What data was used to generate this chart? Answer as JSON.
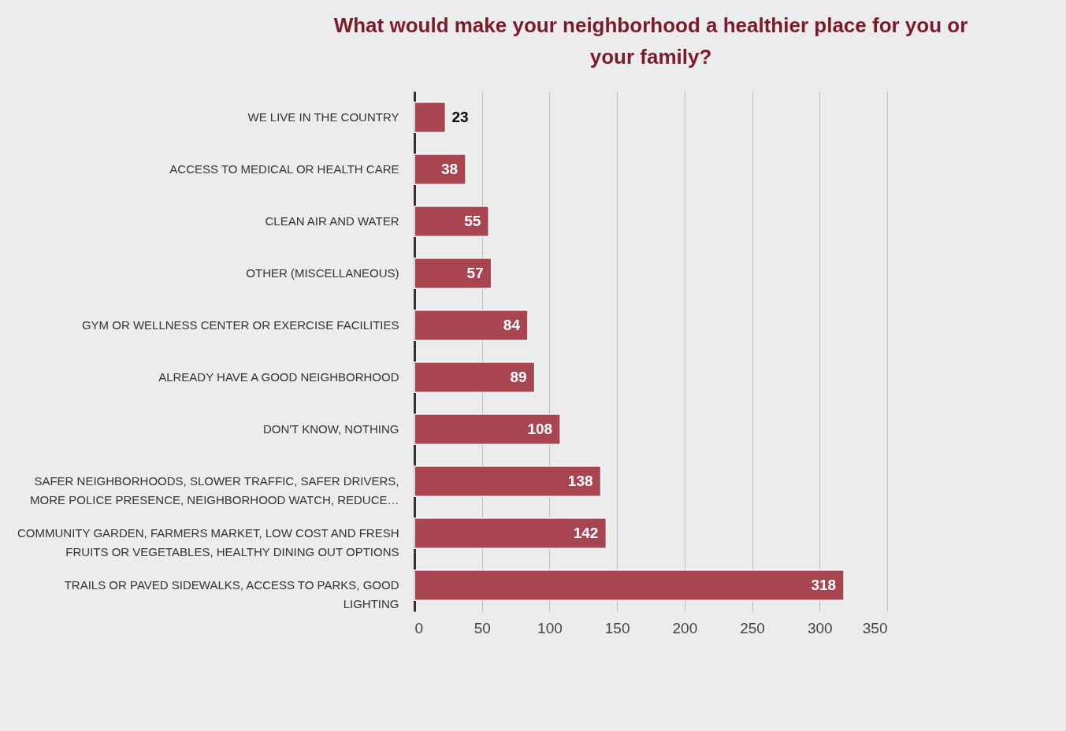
{
  "chart_data": {
    "type": "bar",
    "orientation": "horizontal",
    "title": "What would make your neighborhood a healthier place for you or your family?",
    "categories": [
      "WE LIVE IN THE COUNTRY",
      "ACCESS TO MEDICAL OR HEALTH CARE",
      "CLEAN AIR AND WATER",
      "OTHER (MISCELLANEOUS)",
      "GYM OR WELLNESS CENTER OR EXERCISE FACILITIES",
      "ALREADY HAVE A GOOD NEIGHBORHOOD",
      "DON'T KNOW, NOTHING",
      "SAFER NEIGHBORHOODS, SLOWER TRAFFIC, SAFER DRIVERS, MORE POLICE PRESENCE, NEIGHBORHOOD WATCH, REDUCE…",
      "COMMUNITY GARDEN, FARMERS MARKET, LOW COST AND FRESH FRUITS OR VEGETABLES, HEALTHY DINING OUT OPTIONS",
      "TRAILS OR PAVED SIDEWALKS, ACCESS TO PARKS, GOOD LIGHTING"
    ],
    "values": [
      23,
      38,
      55,
      57,
      84,
      89,
      108,
      138,
      142,
      318
    ],
    "color": "#a84550",
    "xlim": [
      0,
      350
    ],
    "xticks": [
      0,
      50,
      100,
      150,
      200,
      250,
      300,
      350
    ],
    "grid": "x",
    "data_labels": true
  }
}
